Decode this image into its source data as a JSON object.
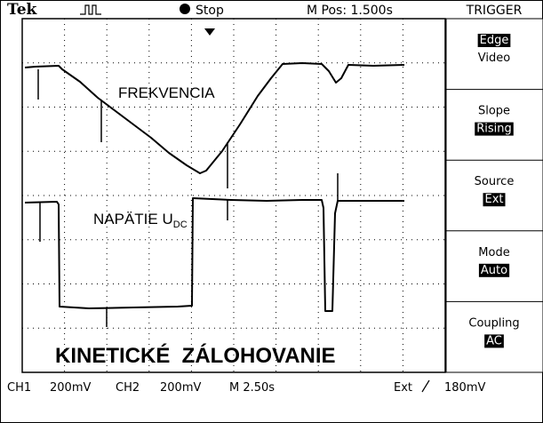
{
  "header": {
    "brand": "Tek",
    "state": "Stop",
    "position": "M Pos: 1.500s",
    "menu_title": "TRIGGER"
  },
  "menu": [
    {
      "label": "Edge",
      "value": "Video"
    },
    {
      "label": "Slope",
      "value": "Rising"
    },
    {
      "label": "Source",
      "value": "Ext"
    },
    {
      "label": "Mode",
      "value": "Auto"
    },
    {
      "label": "Coupling",
      "value": "AC"
    }
  ],
  "status": {
    "ch1": "CH1",
    "ch1_scale": "200mV",
    "ch2": "CH2",
    "ch2_scale": "200mV",
    "timebase": "M 2.50s",
    "trigger_source": "Ext",
    "trigger_level": "180mV"
  },
  "annotations": {
    "upper": "FREKVENCIA",
    "lower": "NAPÄTIE U",
    "lower_subscript": "DC",
    "caption": "KINETICKÉ  ZÁLOHOVANIE"
  }
}
